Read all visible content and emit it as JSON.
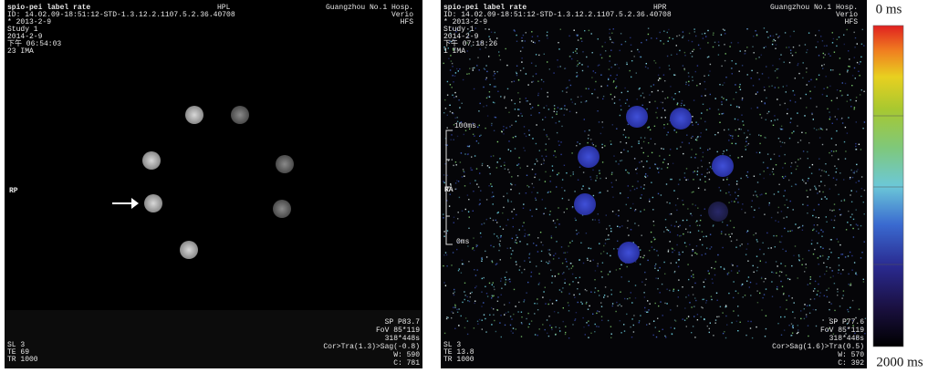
{
  "panels": [
    {
      "header": {
        "title": "spio-pei label rate",
        "orientation": "HPL",
        "hospital": "Guangzhou No.1 Hosp.",
        "id": "ID: 14.02.09-18:51:12-STD-1.3.12.2.1107.5.2.36.40708",
        "scanner": "Verio",
        "date_marker": "* 2013-2-9",
        "position": "HFS",
        "study": "Study 1",
        "date": "2014-2-9",
        "time": "下午 06:54:03",
        "images": "23 IMA"
      },
      "side_label": "RP",
      "footer_left": [
        "SL 3",
        "TE 69",
        "TR 1000"
      ],
      "footer_right": [
        "SP P83.7",
        "FoV 85*119",
        "318*448s",
        "Cor>Tra(1.3)>Sag(-0.8)",
        "W: 590",
        "C: 781"
      ]
    },
    {
      "header": {
        "title": "spio-pei label rate",
        "orientation": "HPR",
        "hospital": "Guangzhou No.1 Hosp.",
        "id": "ID: 14.02.09-18:51:12-STD-1.3.12.2.1107.5.2.36.40708",
        "scanner": "Verio",
        "date_marker": "* 2013-2-9",
        "position": "HFS",
        "study": "Study 1",
        "date": "2014-2-9",
        "time": "下午 07:18:26",
        "images": "1 IMA"
      },
      "side_label": "RA",
      "scale_top": "100ms",
      "scale_bottom": "0ms",
      "footer_left": [
        "SL 3",
        "TE 13.8",
        "TR 1000"
      ],
      "footer_right": [
        "SP P77.6",
        "FoV 85*119",
        "318*448s",
        "Cor>Sag(1.6)>Tra(0.5)",
        "W: 570",
        "C: 392"
      ]
    }
  ],
  "colorbar": {
    "top_label": "0 ms",
    "bottom_label": "2000 ms"
  }
}
